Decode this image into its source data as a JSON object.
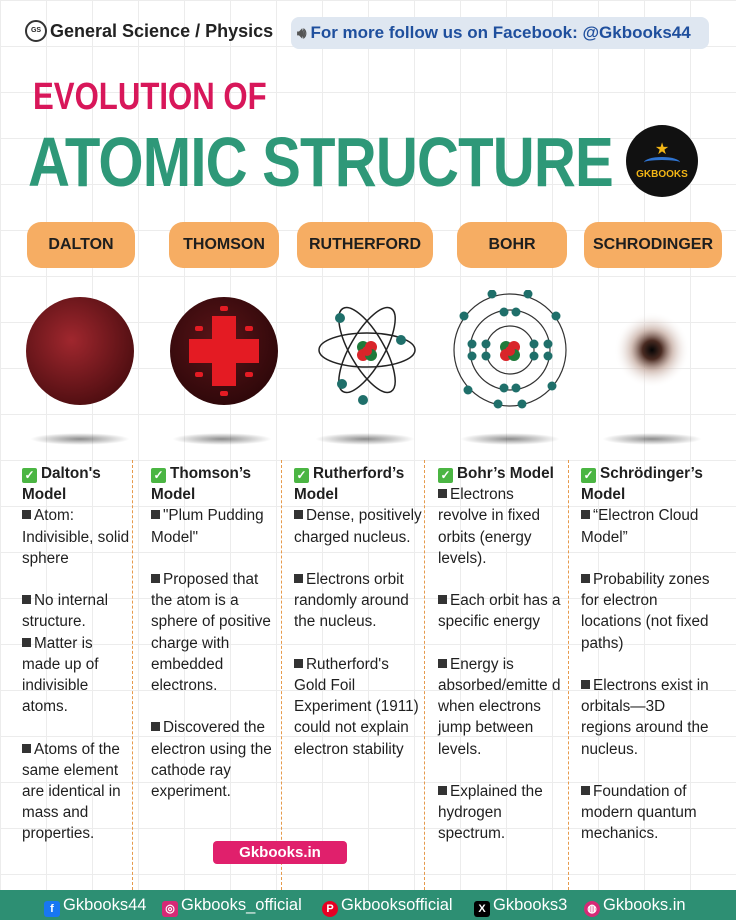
{
  "header": {
    "logo_text": "GS",
    "breadcrumb": "General Science / Physics",
    "promo": "For  more follow us on Facebook: @Gkbooks44"
  },
  "title": {
    "line1": "EVOLUTION OF",
    "line2": "ATOMIC STRUCTURE"
  },
  "brand_badge": "GKBOOKS",
  "models": [
    {
      "pill": "DALTON",
      "heading": "Dalton's Model",
      "points": [
        "Atom: Indivisible, solid sphere",
        "No internal structure.",
        "Matter is made up of indivisible atoms.",
        "Atoms of the same element are identical in mass and properties."
      ]
    },
    {
      "pill": "THOMSON",
      "heading": "Thomson’s Model",
      "points": [
        "\"Plum Pudding Model\"",
        "Proposed that the atom is a sphere of positive charge with embedded electrons.",
        "Discovered the electron using the cathode ray experiment."
      ]
    },
    {
      "pill": "RUTHERFORD",
      "heading": "Rutherford’s Model",
      "points": [
        "Dense, positively charged nucleus.",
        "Electrons orbit randomly around the nucleus.",
        "Rutherford's Gold Foil Experiment (1911) could not explain electron stability"
      ]
    },
    {
      "pill": "BOHR",
      "heading": "Bohr’s Model",
      "points": [
        "Electrons revolve in fixed orbits (energy levels).",
        "Each orbit has a specific energy",
        "Energy is absorbed/emitte d when electrons jump between levels.",
        "Explained the hydrogen spectrum."
      ]
    },
    {
      "pill": "SCHRODINGER",
      "heading": "Schrödinger’s Model",
      "points": [
        "“Electron Cloud Model”",
        "Probability zones for electron locations (not fixed paths)",
        "Electrons exist in orbitals—3D regions around the nucleus.",
        "Foundation of modern quantum mechanics."
      ]
    }
  ],
  "site_tag": "Gkbooks.in",
  "footer": {
    "facebook": "Gkbooks44",
    "instagram": "Gkbooks_official",
    "pinterest": "Gkbooksofficial",
    "x": "Gkbooks3",
    "website": "Gkbooks.in"
  },
  "colors": {
    "accent_pink": "#d8175a",
    "title_green": "#2e9878",
    "pill_orange": "#f6ad63",
    "footer_green": "#2d8f73"
  }
}
